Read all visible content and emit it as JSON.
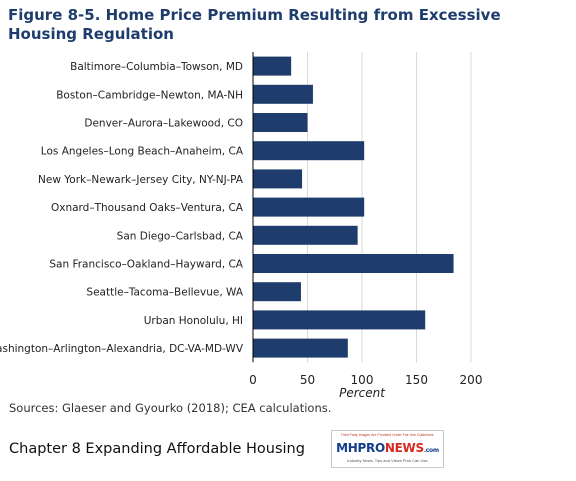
{
  "title": "Figure 8-5. Home Price Premium Resulting from Excessive Housing Regulation",
  "source": "Sources: Glaeser and Gyourko (2018); CEA calculations.",
  "caption": "Chapter 8 Expanding Affordable Housing",
  "logo": {
    "fine_print": "Third Party Images Are Provided Under Fair Use Guidelines.",
    "mh": "MH",
    "pro": "PRO",
    "news": "NEWS",
    "com": ".com",
    "tagline": "Industry News, Tips and Views Pros Can Use"
  },
  "colors": {
    "bar": "#1f3d6c",
    "title": "#1f3d6c",
    "grid": "#d9d9d9"
  },
  "chart_data": {
    "type": "bar",
    "orientation": "horizontal",
    "categories": [
      "Baltimore–Columbia–Towson, MD",
      "Boston–Cambridge–Newton, MA-NH",
      "Denver–Aurora–Lakewood, CO",
      "Los Angeles–Long Beach–Anaheim, CA",
      "New York–Newark–Jersey City, NY-NJ-PA",
      "Oxnard–Thousand Oaks–Ventura, CA",
      "San Diego–Carlsbad, CA",
      "San Francisco–Oakland–Hayward, CA",
      "Seattle–Tacoma–Bellevue, WA",
      "Urban Honolulu, HI",
      "Washington–Arlington–Alexandria, DC-VA-MD-WV"
    ],
    "values": [
      35,
      55,
      50,
      102,
      45,
      102,
      96,
      184,
      44,
      158,
      87
    ],
    "xlabel": "Percent",
    "xlim": [
      0,
      200
    ],
    "xticks": [
      0,
      50,
      100,
      150,
      200
    ],
    "grid": true
  }
}
